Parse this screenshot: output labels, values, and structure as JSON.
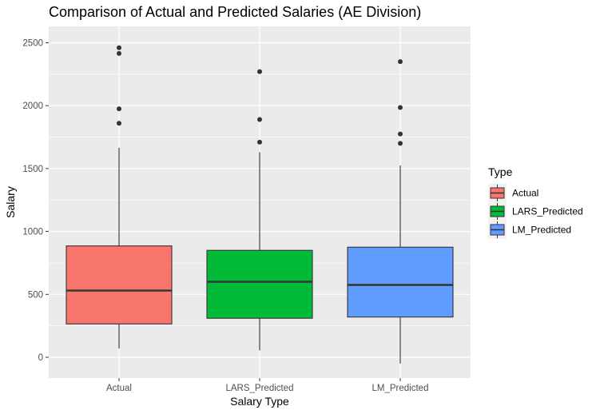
{
  "chart_data": {
    "type": "boxplot",
    "title": "Comparison of Actual and Predicted Salaries (AE Division)",
    "xlabel": "Salary Type",
    "ylabel": "Salary",
    "ylim": [
      -165,
      2630
    ],
    "yticks": [
      0,
      500,
      1000,
      1500,
      2000,
      2500
    ],
    "categories": [
      "Actual",
      "LARS_Predicted",
      "LM_Predicted"
    ],
    "grid": true,
    "background": "#ebebeb",
    "legend": {
      "title": "Type",
      "position": "right",
      "entries": [
        "Actual",
        "LARS_Predicted",
        "LM_Predicted"
      ]
    },
    "series": [
      {
        "category": "Actual",
        "color": "#f8766d",
        "whisker_low": 70,
        "q1": 265,
        "median": 530,
        "q3": 885,
        "whisker_high": 1665,
        "outliers": [
          1860,
          1975,
          2415,
          2460
        ]
      },
      {
        "category": "LARS_Predicted",
        "color": "#00ba38",
        "whisker_low": 55,
        "q1": 310,
        "median": 600,
        "q3": 850,
        "whisker_high": 1630,
        "outliers": [
          1710,
          1890,
          2270
        ]
      },
      {
        "category": "LM_Predicted",
        "color": "#619cff",
        "whisker_low": -50,
        "q1": 320,
        "median": 575,
        "q3": 875,
        "whisker_high": 1525,
        "outliers": [
          1700,
          1775,
          1985,
          2350
        ]
      }
    ]
  }
}
